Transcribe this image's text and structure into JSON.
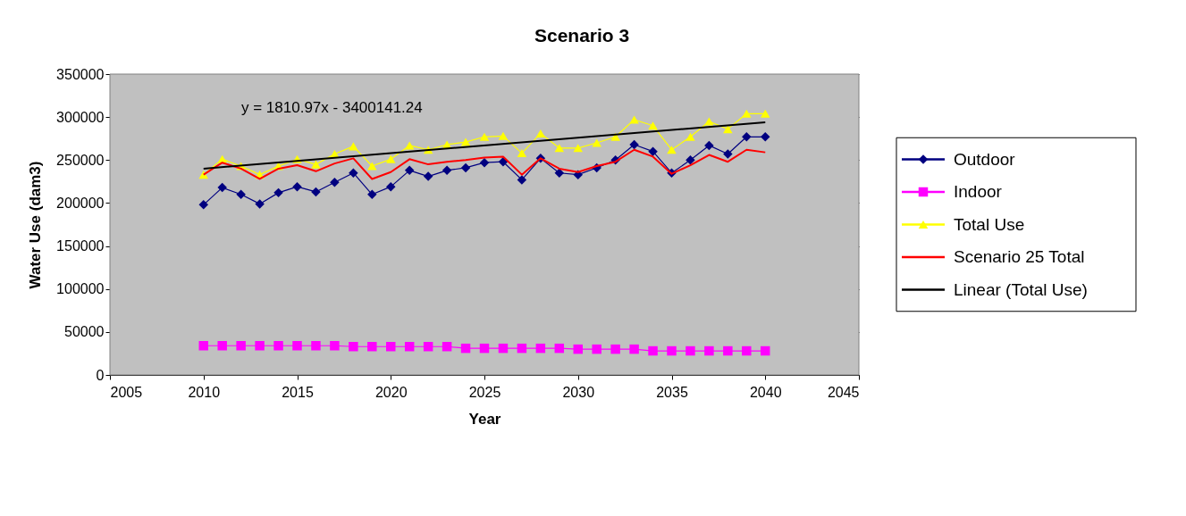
{
  "chart_data": {
    "type": "line",
    "title": "Scenario 3",
    "xlabel": "Year",
    "ylabel": "Water Use (dam3)",
    "x": [
      2010,
      2011,
      2012,
      2013,
      2014,
      2015,
      2016,
      2017,
      2018,
      2019,
      2020,
      2021,
      2022,
      2023,
      2024,
      2025,
      2026,
      2027,
      2028,
      2029,
      2030,
      2031,
      2032,
      2033,
      2034,
      2035,
      2036,
      2037,
      2038,
      2039,
      2040
    ],
    "series": [
      {
        "name": "Outdoor",
        "color": "#000080",
        "marker": "diamond",
        "values": [
          198000,
          218000,
          210000,
          199000,
          212000,
          219000,
          213000,
          224000,
          235000,
          210000,
          219000,
          238000,
          231000,
          238000,
          241000,
          247000,
          248000,
          227000,
          252000,
          235000,
          233000,
          241000,
          250000,
          268000,
          260000,
          235000,
          250000,
          267000,
          257000,
          277000,
          277000
        ]
      },
      {
        "name": "Indoor",
        "color": "#ff00ff",
        "marker": "square",
        "values": [
          34000,
          34000,
          34000,
          34000,
          34000,
          34000,
          34000,
          34000,
          33000,
          33000,
          33000,
          33000,
          33000,
          33000,
          31000,
          31000,
          31000,
          31000,
          31000,
          31000,
          30000,
          30000,
          30000,
          30000,
          28000,
          28000,
          28000,
          28000,
          28000,
          28000,
          28000
        ]
      },
      {
        "name": "Total Use",
        "color": "#ffff00",
        "marker": "triangle",
        "values": [
          233000,
          251000,
          243000,
          233000,
          243000,
          251000,
          245000,
          257000,
          266000,
          243000,
          251000,
          267000,
          262000,
          268000,
          271000,
          277000,
          278000,
          258000,
          281000,
          264000,
          264000,
          270000,
          277000,
          297000,
          290000,
          262000,
          277000,
          295000,
          286000,
          304000,
          304000
        ]
      },
      {
        "name": "Scenario 25 Total",
        "color": "#ff0000",
        "marker": "none",
        "values": [
          233000,
          247000,
          240000,
          228000,
          240000,
          244000,
          237000,
          246000,
          252000,
          228000,
          236000,
          251000,
          245000,
          248000,
          250000,
          253000,
          254000,
          233000,
          252000,
          240000,
          236000,
          243000,
          248000,
          262000,
          254000,
          234000,
          244000,
          256000,
          248000,
          262000,
          259000
        ]
      },
      {
        "name": "Linear (Total Use)",
        "color": "#000000",
        "marker": "none",
        "x": [
          2010,
          2040
        ],
        "values": [
          240000,
          294000
        ]
      }
    ],
    "annotations": [
      "y = 1810.97x - 3400141.24"
    ],
    "xlim": [
      2005,
      2045
    ],
    "xticks": [
      2005,
      2010,
      2015,
      2020,
      2025,
      2030,
      2035,
      2040,
      2045
    ],
    "ylim": [
      0,
      350000
    ],
    "yticks": [
      0,
      50000,
      100000,
      150000,
      200000,
      250000,
      300000,
      350000
    ],
    "grid": "y",
    "legend": "right",
    "line_style": "solid"
  }
}
